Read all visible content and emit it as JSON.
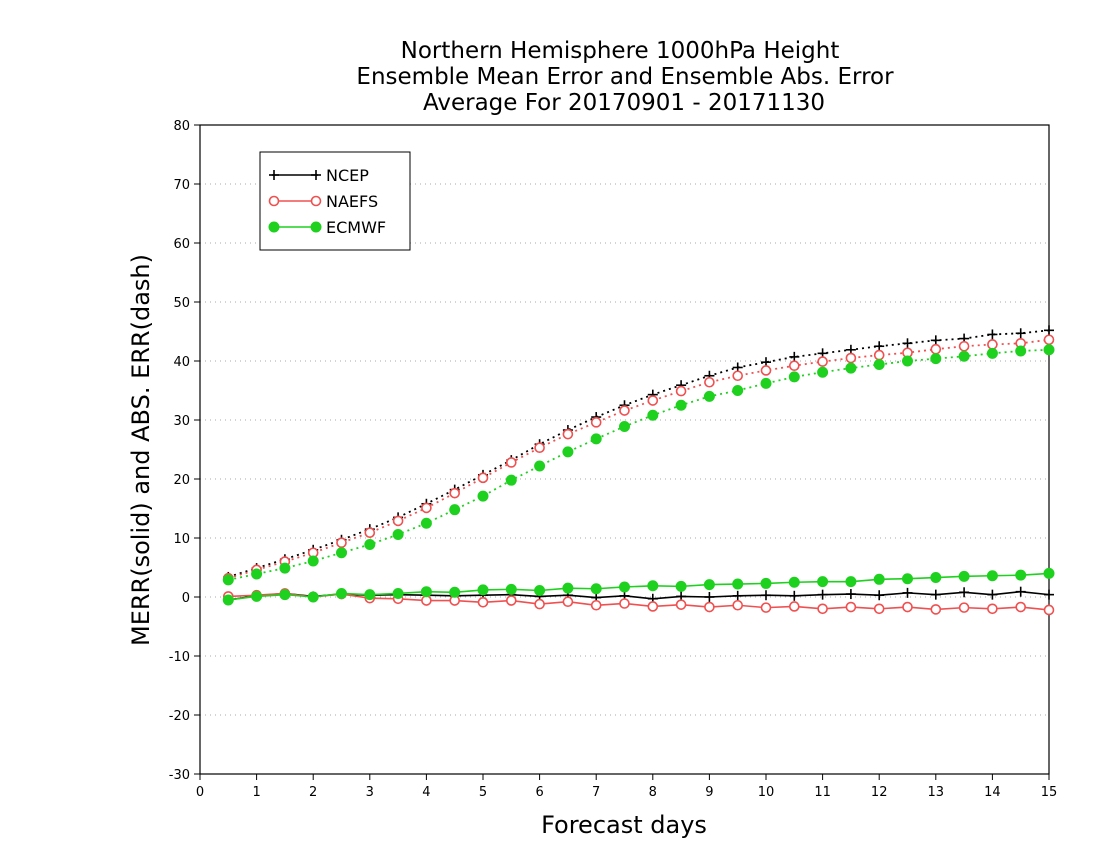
{
  "chart_data": {
    "type": "line",
    "title": [
      "Northern Hemisphere 1000hPa Height",
      "Ensemble Mean Error and Ensemble Abs. Error",
      "Average For 20170901 - 20171130"
    ],
    "xlabel": "Forecast days",
    "ylabel": "MERR(solid) and ABS. ERR(dash)",
    "xlim": [
      0,
      15
    ],
    "ylim": [
      -30,
      80
    ],
    "xticks": [
      0,
      1,
      2,
      3,
      4,
      5,
      6,
      7,
      8,
      9,
      10,
      11,
      12,
      13,
      14,
      15
    ],
    "yticks": [
      -30,
      -20,
      -10,
      0,
      10,
      20,
      30,
      40,
      50,
      60,
      70,
      80
    ],
    "grid": "horizontal dotted",
    "legend_position": "top-left",
    "x": [
      0.5,
      1,
      1.5,
      2,
      2.5,
      3,
      3.5,
      4,
      4.5,
      5,
      5.5,
      6,
      6.5,
      7,
      7.5,
      8,
      8.5,
      9,
      9.5,
      10,
      10.5,
      11,
      11.5,
      12,
      12.5,
      13,
      13.5,
      14,
      14.5,
      15
    ],
    "series": [
      {
        "name": "NCEP",
        "color": "#000000",
        "marker": "plus",
        "merr": [
          -0.5,
          0.2,
          0.6,
          0.1,
          0.5,
          0.3,
          0.4,
          0.3,
          0.2,
          0.3,
          0.4,
          0.1,
          0.3,
          -0.1,
          0.2,
          -0.3,
          0.1,
          0.0,
          0.2,
          0.3,
          0.2,
          0.4,
          0.5,
          0.3,
          0.7,
          0.4,
          0.8,
          0.4,
          0.9,
          0.4
        ],
        "abs_err": [
          3.4,
          4.9,
          6.4,
          8.0,
          9.7,
          11.5,
          13.5,
          15.8,
          18.2,
          20.7,
          23.2,
          25.9,
          28.3,
          30.5,
          32.5,
          34.3,
          35.9,
          37.5,
          38.9,
          39.8,
          40.7,
          41.3,
          41.9,
          42.5,
          43.0,
          43.5,
          43.8,
          44.5,
          44.7,
          45.2
        ]
      },
      {
        "name": "NAEFS",
        "color": "#f05050",
        "marker": "open-circle",
        "merr": [
          0.1,
          0.3,
          0.6,
          0.0,
          0.5,
          -0.2,
          -0.3,
          -0.6,
          -0.6,
          -0.9,
          -0.6,
          -1.2,
          -0.8,
          -1.4,
          -1.1,
          -1.6,
          -1.3,
          -1.7,
          -1.4,
          -1.8,
          -1.6,
          -2.0,
          -1.7,
          -2.0,
          -1.7,
          -2.1,
          -1.8,
          -2.0,
          -1.7,
          -2.2
        ],
        "abs_err": [
          3.2,
          4.6,
          6.0,
          7.5,
          9.2,
          10.9,
          12.9,
          15.1,
          17.6,
          20.2,
          22.8,
          25.3,
          27.6,
          29.6,
          31.6,
          33.3,
          34.9,
          36.4,
          37.5,
          38.4,
          39.2,
          39.9,
          40.5,
          41.0,
          41.4,
          42.0,
          42.5,
          42.8,
          43.0,
          43.6
        ]
      },
      {
        "name": "ECMWF",
        "color": "#1fd11f",
        "marker": "filled-circle",
        "merr": [
          -0.5,
          0.1,
          0.4,
          0.0,
          0.6,
          0.4,
          0.6,
          0.9,
          0.8,
          1.2,
          1.3,
          1.1,
          1.5,
          1.4,
          1.7,
          1.9,
          1.8,
          2.1,
          2.2,
          2.3,
          2.5,
          2.6,
          2.6,
          3.0,
          3.1,
          3.3,
          3.5,
          3.6,
          3.7,
          4.0
        ],
        "abs_err": [
          2.9,
          3.9,
          4.9,
          6.1,
          7.5,
          8.9,
          10.6,
          12.5,
          14.8,
          17.1,
          19.8,
          22.2,
          24.6,
          26.8,
          28.9,
          30.8,
          32.5,
          34.0,
          35.0,
          36.2,
          37.3,
          38.1,
          38.8,
          39.4,
          40.0,
          40.4,
          40.8,
          41.3,
          41.7,
          41.9
        ]
      }
    ]
  }
}
